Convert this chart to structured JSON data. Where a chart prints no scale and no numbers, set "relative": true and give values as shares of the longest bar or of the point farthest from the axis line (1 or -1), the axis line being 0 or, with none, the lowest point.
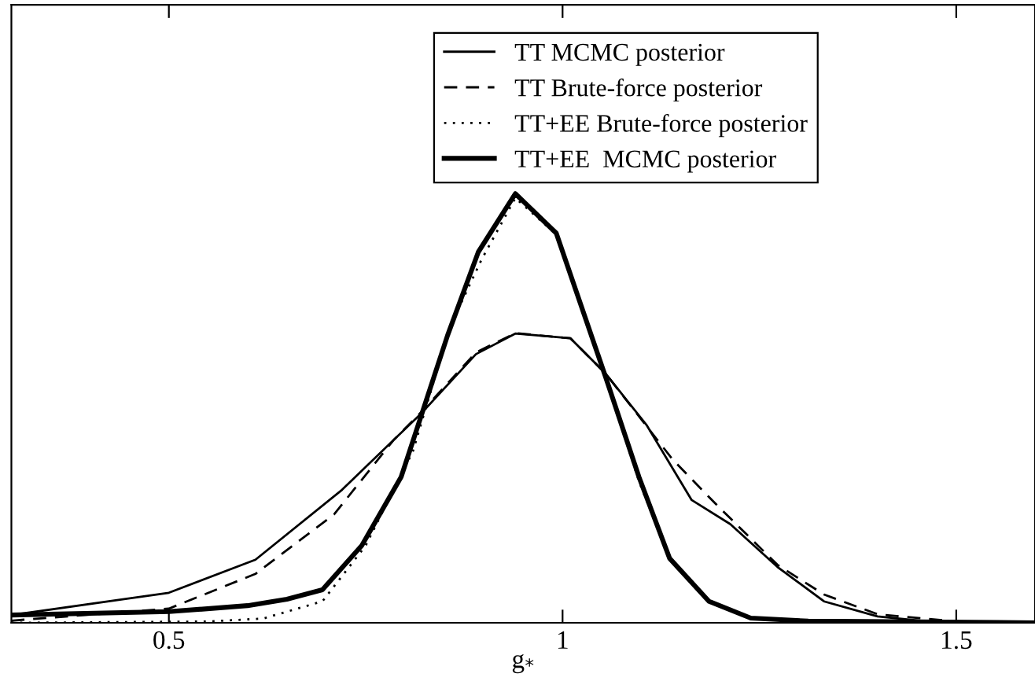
{
  "chart_data": {
    "type": "line",
    "relative": true,
    "xlabel": "g$_{*}$",
    "xlim": [
      0.3,
      1.6
    ],
    "xticks": [
      0.5,
      1,
      1.5
    ],
    "grid": false,
    "legend": "top right",
    "marker": "none",
    "series": [
      {
        "name": "TT MCMC posterior",
        "color": "#000000",
        "line_style": "solid",
        "x": [
          0.3,
          0.5,
          0.61,
          0.72,
          0.82,
          0.89,
          0.94,
          1.01,
          1.055,
          1.107,
          1.164,
          1.213,
          1.273,
          1.332,
          1.4,
          1.48,
          1.6
        ],
        "values": [
          0.018,
          0.07,
          0.147,
          0.31,
          0.487,
          0.626,
          0.674,
          0.663,
          0.58,
          0.46,
          0.286,
          0.23,
          0.13,
          0.05,
          0.015,
          0.0,
          0.0
        ]
      },
      {
        "name": "TT Brute-force posterior",
        "color": "#000000",
        "line_style": "dashed",
        "x": [
          0.3,
          0.5,
          0.61,
          0.71,
          0.785,
          0.82,
          0.89,
          0.94,
          1.01,
          1.055,
          1.14,
          1.194,
          1.273,
          1.332,
          1.4,
          1.5,
          1.6
        ],
        "values": [
          0.005,
          0.033,
          0.114,
          0.253,
          0.425,
          0.49,
          0.63,
          0.675,
          0.663,
          0.58,
          0.38,
          0.278,
          0.135,
          0.066,
          0.02,
          0.003,
          0.0
        ]
      },
      {
        "name": "TT+EE Brute-force posterior",
        "color": "#000000",
        "line_style": "dotted",
        "x": [
          0.3,
          0.55,
          0.62,
          0.695,
          0.75,
          0.81,
          0.857,
          0.897,
          0.94,
          0.992,
          1.055,
          1.097,
          1.136,
          1.186,
          1.24,
          1.31,
          1.6
        ],
        "values": [
          0.0,
          0.003,
          0.01,
          0.05,
          0.18,
          0.4,
          0.69,
          0.846,
          0.99,
          0.905,
          0.57,
          0.33,
          0.15,
          0.05,
          0.011,
          0.003,
          0.0
        ]
      },
      {
        "name": "TT+EE  MCMC posterior",
        "color": "#000000",
        "line_style": "solid",
        "x": [
          0.3,
          0.5,
          0.6,
          0.65,
          0.695,
          0.745,
          0.795,
          0.854,
          0.893,
          0.94,
          0.992,
          1.055,
          1.097,
          1.136,
          1.186,
          1.239,
          1.312,
          1.6
        ],
        "values": [
          0.018,
          0.026,
          0.04,
          0.055,
          0.077,
          0.18,
          0.34,
          0.67,
          0.864,
          1.0,
          0.908,
          0.571,
          0.34,
          0.15,
          0.05,
          0.011,
          0.004,
          0.0
        ]
      }
    ]
  }
}
